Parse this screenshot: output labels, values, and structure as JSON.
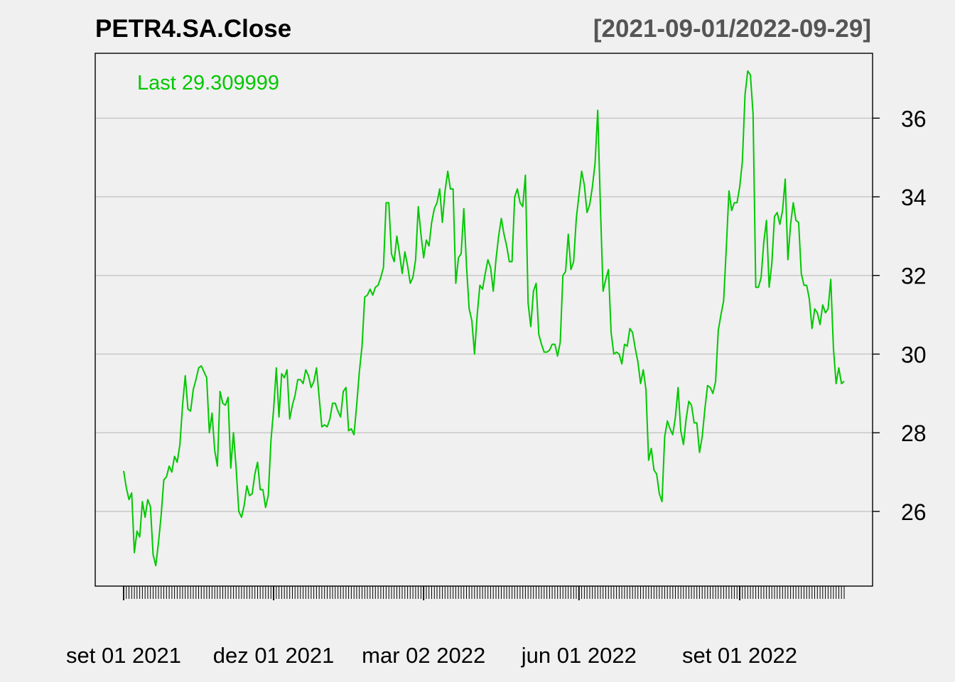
{
  "chart_data": {
    "type": "line",
    "title": "PETR4.SA.Close",
    "date_range": "[2021-09-01/2022-09-29]",
    "last_label": "Last 29.309999",
    "xlabel": "",
    "ylabel": "",
    "ylim": [
      24.1,
      37.65
    ],
    "y_ticks": [
      26,
      28,
      30,
      32,
      34,
      36
    ],
    "x_ticks": [
      {
        "index": 0,
        "label": "set 01 2021"
      },
      {
        "index": 56,
        "label": "dez 01 2021"
      },
      {
        "index": 112,
        "label": "mar 02 2022"
      },
      {
        "index": 170,
        "label": "jun 01 2022"
      },
      {
        "index": 230,
        "label": "set 01 2022"
      }
    ],
    "grid": true,
    "legend_position": "top-left",
    "line_color": "#00c800",
    "grid_color": "#c8c8c8",
    "series": [
      {
        "start_date": "2021-09-01",
        "end_date": "2022-09-29",
        "values": [
          27.03,
          26.6,
          26.3,
          26.47,
          24.95,
          25.5,
          25.35,
          26.25,
          25.85,
          26.3,
          26.12,
          24.9,
          24.62,
          25.2,
          25.9,
          26.8,
          26.88,
          27.15,
          27.0,
          27.4,
          27.25,
          27.7,
          28.7,
          29.45,
          28.6,
          28.55,
          29.1,
          29.35,
          29.65,
          29.7,
          29.55,
          29.4,
          28.0,
          28.5,
          27.55,
          27.15,
          29.05,
          28.75,
          28.7,
          28.9,
          27.1,
          28.0,
          27.1,
          26.0,
          25.85,
          26.15,
          26.65,
          26.4,
          26.45,
          26.95,
          27.25,
          26.55,
          26.55,
          26.1,
          26.4,
          27.8,
          28.6,
          29.65,
          28.4,
          29.5,
          29.4,
          29.6,
          28.35,
          28.7,
          28.95,
          29.35,
          29.35,
          29.25,
          29.6,
          29.45,
          29.15,
          29.3,
          29.65,
          28.9,
          28.15,
          28.2,
          28.15,
          28.35,
          28.75,
          28.75,
          28.55,
          28.4,
          29.05,
          29.15,
          28.05,
          28.1,
          27.95,
          28.7,
          29.55,
          30.2,
          31.45,
          31.5,
          31.65,
          31.5,
          31.7,
          31.75,
          31.95,
          32.2,
          33.85,
          33.85,
          32.55,
          32.35,
          33.0,
          32.55,
          32.05,
          32.6,
          32.25,
          31.8,
          31.95,
          32.4,
          33.75,
          33.05,
          32.45,
          32.9,
          32.75,
          33.35,
          33.7,
          33.85,
          34.2,
          33.35,
          34.15,
          34.65,
          34.2,
          34.2,
          31.8,
          32.45,
          32.55,
          33.7,
          32.25,
          31.15,
          30.85,
          30.0,
          31.0,
          31.75,
          31.65,
          32.05,
          32.4,
          32.2,
          31.6,
          32.4,
          33.0,
          33.45,
          33.05,
          32.75,
          32.35,
          32.35,
          34.0,
          34.2,
          33.85,
          33.75,
          34.55,
          31.3,
          30.7,
          31.6,
          31.8,
          30.5,
          30.25,
          30.05,
          30.05,
          30.1,
          30.25,
          30.25,
          29.95,
          30.3,
          32.0,
          32.1,
          33.05,
          32.15,
          32.35,
          33.45,
          34.05,
          34.65,
          34.3,
          33.6,
          33.8,
          34.25,
          34.85,
          36.2,
          33.75,
          31.6,
          31.9,
          32.15,
          30.55,
          30.0,
          30.05,
          30.0,
          29.75,
          30.25,
          30.2,
          30.65,
          30.55,
          30.15,
          29.8,
          29.25,
          29.6,
          29.1,
          27.3,
          27.6,
          27.05,
          26.95,
          26.45,
          26.25,
          27.9,
          28.3,
          28.1,
          27.95,
          28.4,
          29.15,
          28.05,
          27.7,
          28.35,
          28.8,
          28.7,
          28.25,
          28.25,
          27.5,
          27.9,
          28.6,
          29.2,
          29.15,
          29.0,
          29.3,
          30.6,
          31.0,
          31.35,
          32.7,
          34.15,
          33.65,
          33.85,
          33.85,
          34.25,
          34.9,
          36.6,
          37.2,
          37.1,
          36.1,
          31.7,
          31.7,
          31.95,
          32.85,
          33.4,
          31.7,
          32.3,
          33.5,
          33.6,
          33.3,
          33.65,
          34.45,
          32.4,
          33.3,
          33.85,
          33.4,
          33.35,
          32.05,
          31.75,
          31.75,
          31.4,
          30.65,
          31.15,
          31.05,
          30.75,
          31.25,
          31.05,
          31.15,
          31.9,
          30.15,
          29.25,
          29.65,
          29.25,
          29.31
        ]
      }
    ]
  }
}
